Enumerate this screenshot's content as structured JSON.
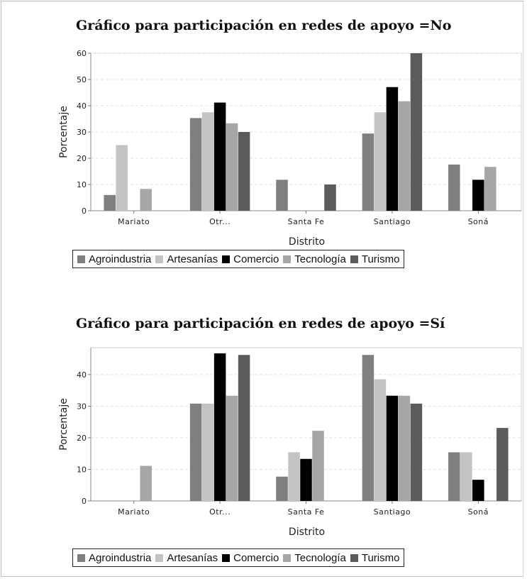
{
  "colors": {
    "Agroindustria": "#7f7f7f",
    "Artesanías": "#c3c3c3",
    "Comercio": "#000000",
    "Tecnología": "#a6a6a6",
    "Turismo": "#5b5b5b"
  },
  "legend_labels": [
    "Agroindustria",
    "Artesanías",
    "Comercio",
    "Tecnología",
    "Turismo"
  ],
  "chart_data": [
    {
      "type": "bar",
      "title": "Gráfico para participación en redes de apoyo =No",
      "xlabel": "Distrito",
      "ylabel": "Porcentaje",
      "ylim": [
        0,
        60
      ],
      "yticks": [
        0,
        10,
        20,
        30,
        40,
        50,
        60
      ],
      "grid": true,
      "legend_position": "bottom",
      "categories": [
        "Mariato",
        "Otr...",
        "Santa Fe",
        "Santiago",
        "Soná"
      ],
      "series": [
        {
          "name": "Agroindustria",
          "values": [
            6,
            35.3,
            11.8,
            29.4,
            17.6
          ]
        },
        {
          "name": "Artesanías",
          "values": [
            25,
            37.5,
            0,
            37.5,
            0
          ]
        },
        {
          "name": "Comercio",
          "values": [
            0,
            41.2,
            0,
            47.1,
            11.8
          ]
        },
        {
          "name": "Tecnología",
          "values": [
            8.3,
            33.3,
            0,
            41.7,
            16.7
          ]
        },
        {
          "name": "Turismo",
          "values": [
            0,
            30,
            10,
            60,
            0
          ]
        }
      ]
    },
    {
      "type": "bar",
      "title": "Gráfico para participación en redes de apoyo =Sí",
      "xlabel": "Distrito",
      "ylabel": "Porcentaje",
      "ylim": [
        0,
        48.5
      ],
      "yticks": [
        0,
        10,
        20,
        30,
        40
      ],
      "grid": true,
      "legend_position": "bottom",
      "categories": [
        "Mariato",
        "Otr...",
        "Santa Fe",
        "Santiago",
        "Soná"
      ],
      "series": [
        {
          "name": "Agroindustria",
          "values": [
            0,
            30.8,
            7.7,
            46.2,
            15.4
          ]
        },
        {
          "name": "Artesanías",
          "values": [
            0,
            30.8,
            15.4,
            38.5,
            15.4
          ]
        },
        {
          "name": "Comercio",
          "values": [
            0,
            46.7,
            13.3,
            33.3,
            6.7
          ]
        },
        {
          "name": "Tecnología",
          "values": [
            11.1,
            33.3,
            22.2,
            33.3,
            0
          ]
        },
        {
          "name": "Turismo",
          "values": [
            0,
            46.2,
            0,
            30.8,
            23.1
          ]
        }
      ]
    }
  ]
}
